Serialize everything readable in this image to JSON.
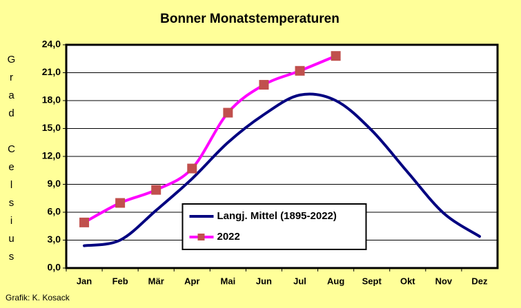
{
  "chart_data": {
    "type": "line",
    "title": "Bonner Monatstemperaturen",
    "y_label": "Grad Celsius",
    "footnote": "Grafik:  K. Kosack",
    "categories": [
      "Jan",
      "Feb",
      "Mär",
      "Apr",
      "Mai",
      "Jun",
      "Jul",
      "Aug",
      "Sept",
      "Okt",
      "Nov",
      "Dez"
    ],
    "series": [
      {
        "name": "Langj. Mittel (1895-2022)",
        "color": "#000080",
        "values": [
          2.4,
          3.0,
          6.2,
          9.6,
          13.5,
          16.5,
          18.6,
          18.0,
          14.8,
          10.3,
          5.9,
          3.4
        ]
      },
      {
        "name": "2022",
        "color": "#ff00ff",
        "marker_color": "#c0504d",
        "values": [
          4.9,
          7.0,
          8.4,
          10.7,
          16.7,
          19.7,
          21.2,
          22.8,
          null,
          null,
          null,
          null
        ]
      }
    ],
    "ylim": [
      0,
      24
    ],
    "yticks": [
      {
        "value": 0,
        "label": "0,0"
      },
      {
        "value": 3,
        "label": "3,0"
      },
      {
        "value": 6,
        "label": "6,0"
      },
      {
        "value": 9,
        "label": "9,0"
      },
      {
        "value": 12,
        "label": "12,0"
      },
      {
        "value": 15,
        "label": "15,0"
      },
      {
        "value": 18,
        "label": "18,0"
      },
      {
        "value": 21,
        "label": "21,0"
      },
      {
        "value": 24,
        "label": "24,0"
      }
    ],
    "grid": true,
    "legend": "lower center"
  }
}
